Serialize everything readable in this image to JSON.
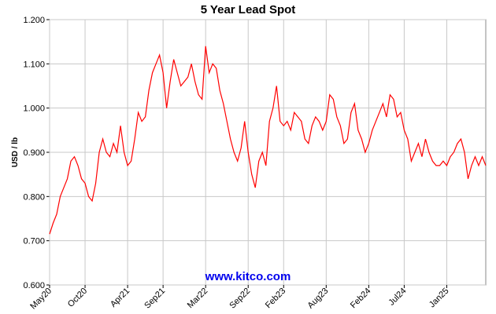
{
  "chart_data": {
    "type": "line",
    "title": "5 Year Lead Spot",
    "y_label": "USD / lb",
    "watermark": "www.kitco.com",
    "categories": [
      "May20",
      null,
      null,
      null,
      null,
      null,
      null,
      null,
      null,
      null,
      "Oct20",
      null,
      null,
      null,
      null,
      null,
      null,
      null,
      null,
      null,
      null,
      null,
      "Apr21",
      null,
      null,
      null,
      null,
      null,
      null,
      null,
      null,
      null,
      "Sep21",
      null,
      null,
      null,
      null,
      null,
      null,
      null,
      null,
      null,
      null,
      null,
      "Mar22",
      null,
      null,
      null,
      null,
      null,
      null,
      null,
      null,
      null,
      null,
      null,
      "Sep22",
      null,
      null,
      null,
      null,
      null,
      null,
      null,
      null,
      null,
      "Feb23",
      null,
      null,
      null,
      null,
      null,
      null,
      null,
      null,
      null,
      null,
      null,
      "Aug23",
      null,
      null,
      null,
      null,
      null,
      null,
      null,
      null,
      null,
      null,
      null,
      "Feb24",
      null,
      null,
      null,
      null,
      null,
      null,
      null,
      null,
      null,
      "Jul24",
      null,
      null,
      null,
      null,
      null,
      null,
      null,
      null,
      null,
      null,
      null,
      "Jan25",
      null,
      null,
      null,
      null,
      null,
      null,
      null,
      null,
      null,
      null,
      null
    ],
    "series": [
      {
        "name": "Lead",
        "color": "#ff0000",
        "values": [
          0.715,
          0.74,
          0.76,
          0.8,
          0.82,
          0.84,
          0.88,
          0.89,
          0.87,
          0.84,
          0.83,
          0.8,
          0.79,
          0.83,
          0.9,
          0.93,
          0.9,
          0.89,
          0.92,
          0.9,
          0.96,
          0.9,
          0.87,
          0.88,
          0.93,
          0.99,
          0.97,
          0.98,
          1.04,
          1.08,
          1.1,
          1.12,
          1.08,
          1.0,
          1.06,
          1.11,
          1.08,
          1.05,
          1.06,
          1.07,
          1.1,
          1.06,
          1.03,
          1.02,
          1.14,
          1.08,
          1.1,
          1.09,
          1.04,
          1.01,
          0.97,
          0.93,
          0.9,
          0.88,
          0.91,
          0.97,
          0.9,
          0.85,
          0.82,
          0.88,
          0.9,
          0.87,
          0.97,
          1.0,
          1.05,
          0.97,
          0.96,
          0.97,
          0.95,
          0.99,
          0.98,
          0.97,
          0.93,
          0.92,
          0.96,
          0.98,
          0.97,
          0.95,
          0.97,
          1.03,
          1.02,
          0.98,
          0.96,
          0.92,
          0.93,
          0.99,
          1.01,
          0.95,
          0.93,
          0.9,
          0.92,
          0.95,
          0.97,
          0.99,
          1.01,
          0.98,
          1.03,
          1.02,
          0.98,
          0.99,
          0.95,
          0.93,
          0.88,
          0.9,
          0.92,
          0.89,
          0.93,
          0.9,
          0.88,
          0.87,
          0.87,
          0.88,
          0.87,
          0.89,
          0.9,
          0.92,
          0.93,
          0.9,
          0.84,
          0.87,
          0.89,
          0.87,
          0.89,
          0.87
        ]
      }
    ],
    "ylim": [
      0.6,
      1.2
    ],
    "yticks": [
      {
        "value": 0.6,
        "label": "0.600"
      },
      {
        "value": 0.7,
        "label": "0.700"
      },
      {
        "value": 0.8,
        "label": "0.800"
      },
      {
        "value": 0.9,
        "label": "0.900"
      },
      {
        "value": 1.0,
        "label": "1.000"
      },
      {
        "value": 1.1,
        "label": "1.100"
      },
      {
        "value": 1.2,
        "label": "1.200"
      }
    ],
    "grid": true
  }
}
